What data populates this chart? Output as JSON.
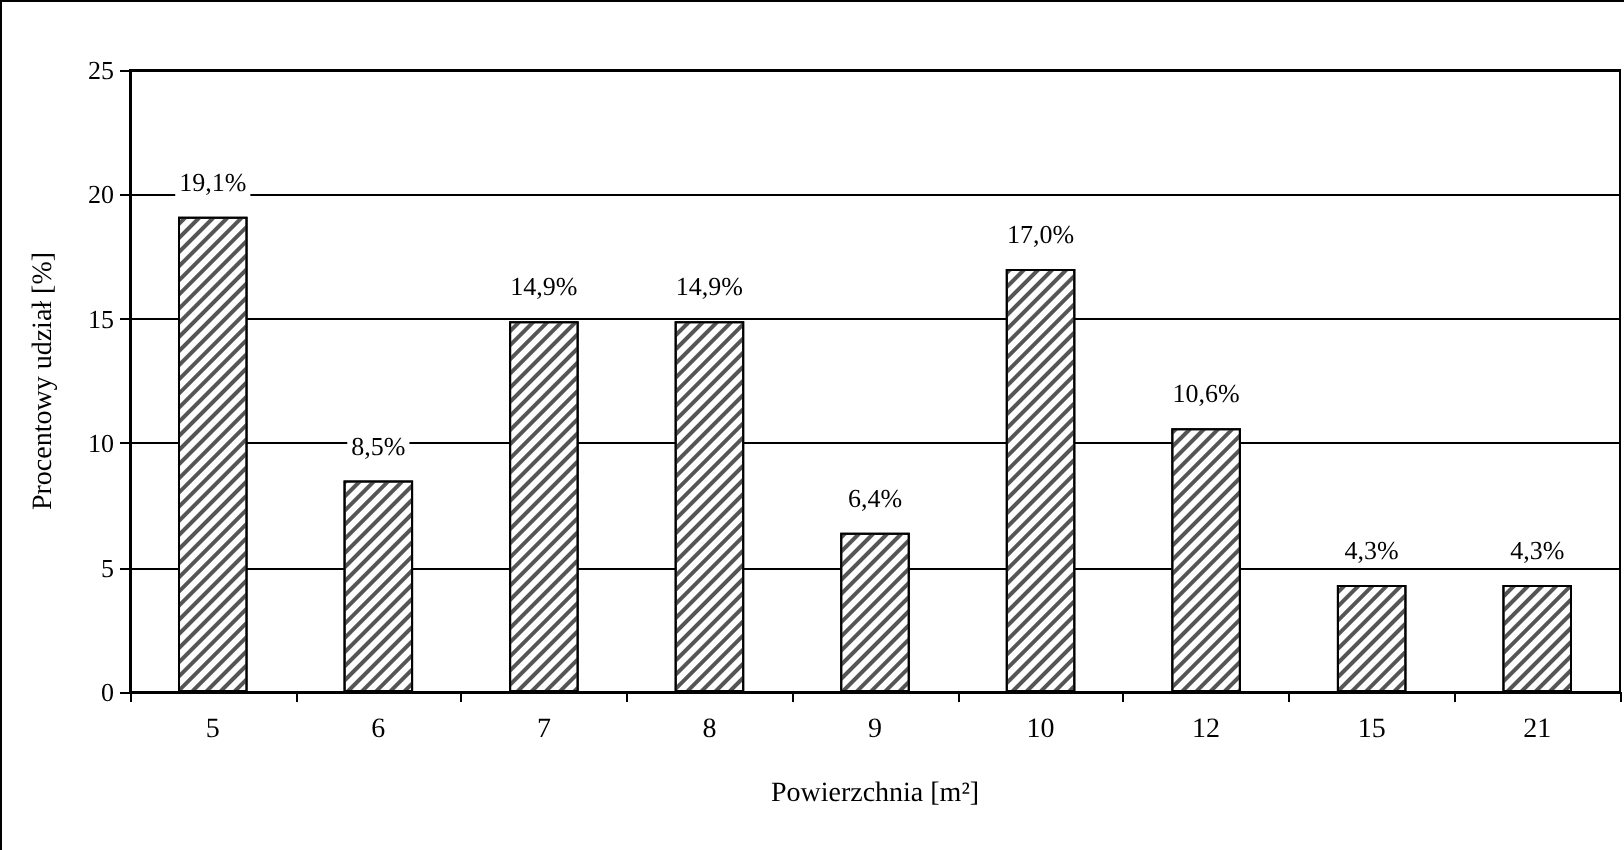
{
  "chart_data": {
    "type": "bar",
    "xlabel": "Powierzchnia [m²]",
    "ylabel": "Procentowy udział [%]",
    "categories": [
      "5",
      "6",
      "7",
      "8",
      "9",
      "10",
      "12",
      "15",
      "21"
    ],
    "values": [
      19.1,
      8.5,
      14.9,
      14.9,
      6.4,
      17.0,
      10.6,
      4.3,
      4.3
    ],
    "value_labels": [
      "19,1%",
      "8,5%",
      "14,9%",
      "14,9%",
      "6,4%",
      "17,0%",
      "10,6%",
      "4,3%",
      "4,3%"
    ],
    "color": "#ffffff",
    "ylim": [
      0,
      25
    ],
    "yticks": [
      0,
      5,
      10,
      15,
      20,
      25
    ],
    "grid": "y"
  }
}
